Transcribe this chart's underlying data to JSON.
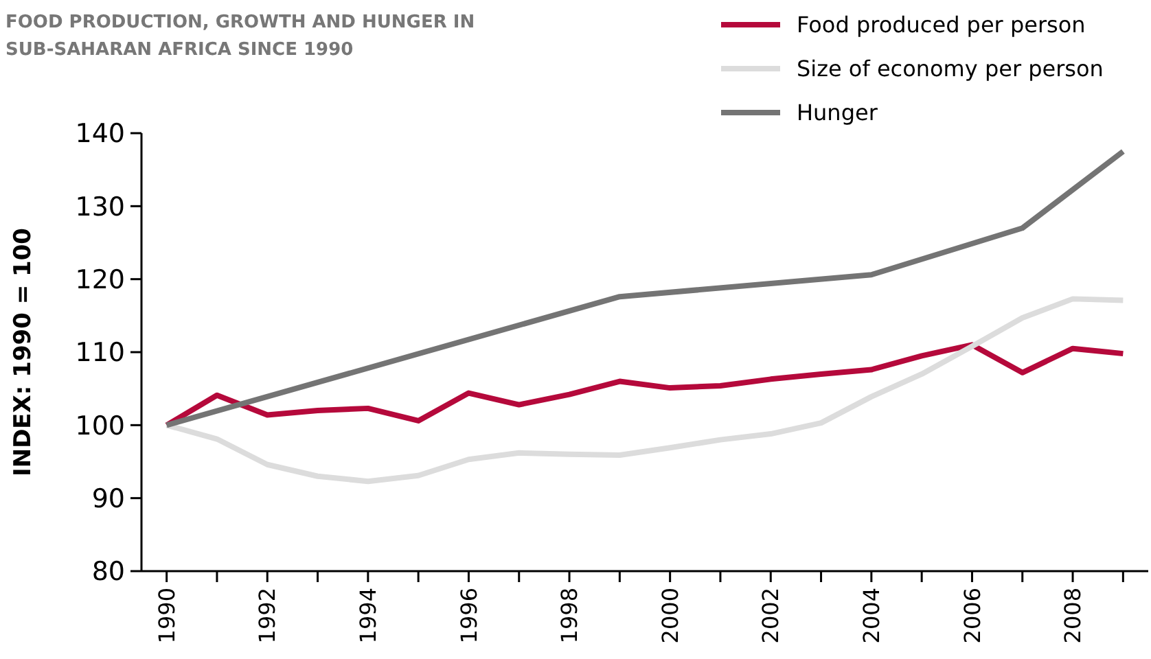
{
  "chart_data": {
    "type": "line",
    "title": "FOOD PRODUCTION, GROWTH AND HUNGER IN SUB-SAHARAN AFRICA SINCE 1990",
    "ylabel": "INDEX: 1990 = 100",
    "xlim": [
      1989.5,
      2009.5
    ],
    "ylim": [
      80,
      140
    ],
    "yticks": [
      80,
      90,
      100,
      110,
      120,
      130,
      140
    ],
    "xticks": [
      1990,
      {
        "value": 1991,
        "label": null
      },
      1992,
      {
        "value": 1993,
        "label": null
      },
      1994,
      {
        "value": 1995,
        "label": null
      },
      1996,
      {
        "value": 1997,
        "label": null
      },
      1998,
      {
        "value": 1999,
        "label": null
      },
      2000,
      {
        "value": 2001,
        "label": null
      },
      2002,
      {
        "value": 2003,
        "label": null
      },
      2004,
      {
        "value": 2005,
        "label": null
      },
      2006,
      {
        "value": 2007,
        "label": null
      },
      2008,
      {
        "value": 2009,
        "label": null
      }
    ],
    "legend": "top right",
    "grid": false,
    "line_style": "solid",
    "marker": "none",
    "series": [
      {
        "name": "Food produced per person",
        "color": "#b5093b",
        "x": [
          1990,
          1991,
          1992,
          1993,
          1994,
          1995,
          1996,
          1997,
          1998,
          1999,
          2000,
          2001,
          2002,
          2003,
          2004,
          2005,
          2006,
          2007,
          2008,
          2009
        ],
        "values": [
          100,
          104.1,
          101.4,
          102,
          102.3,
          100.6,
          104.4,
          102.8,
          104.2,
          106,
          105.1,
          105.4,
          106.3,
          107,
          107.6,
          109.5,
          111,
          107.2,
          110.5,
          109.8
        ]
      },
      {
        "name": "Size of economy per person",
        "color": "#dcdcdc",
        "x": [
          1990,
          1991,
          1992,
          1993,
          1994,
          1995,
          1996,
          1997,
          1998,
          1999,
          2000,
          2001,
          2002,
          2003,
          2004,
          2005,
          2006,
          2007,
          2008,
          2009
        ],
        "values": [
          100,
          98.1,
          94.6,
          93,
          92.3,
          93.1,
          95.3,
          96.2,
          96,
          95.9,
          96.9,
          98,
          98.8,
          100.3,
          103.9,
          107,
          110.8,
          114.7,
          117.3,
          117.1
        ]
      },
      {
        "name": "Hunger",
        "color": "#747474",
        "x": [
          1990,
          1999,
          2004,
          2007,
          2009
        ],
        "values": [
          100,
          117.6,
          120.6,
          127,
          137.5
        ]
      }
    ]
  }
}
